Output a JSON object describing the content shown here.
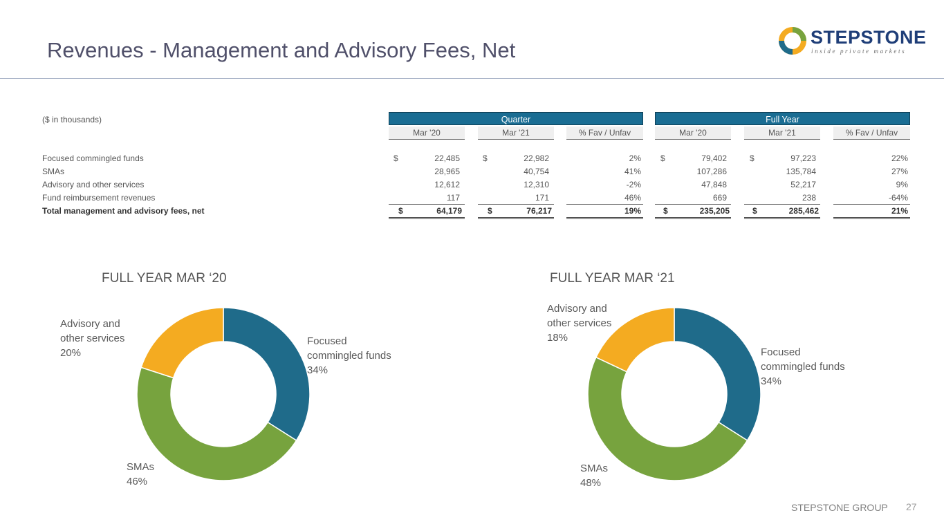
{
  "title": "Revenues - Management and Advisory Fees, Net",
  "logo": {
    "name": "STEPSTONE",
    "tagline": "inside private markets"
  },
  "table": {
    "units_label": "($ in thousands)",
    "groups": [
      "Quarter",
      "Full Year"
    ],
    "columns": [
      "Mar '20",
      "Mar '21",
      "% Fav / Unfav",
      "Mar '20",
      "Mar '21",
      "% Fav / Unfav"
    ],
    "currency": "$",
    "rows": [
      {
        "label": "Focused commingled funds",
        "values": [
          "22,485",
          "22,982",
          "2%",
          "79,402",
          "97,223",
          "22%"
        ]
      },
      {
        "label": "SMAs",
        "values": [
          "28,965",
          "40,754",
          "41%",
          "107,286",
          "135,784",
          "27%"
        ]
      },
      {
        "label": "Advisory and other services",
        "values": [
          "12,612",
          "12,310",
          "-2%",
          "47,848",
          "52,217",
          "9%"
        ]
      },
      {
        "label": "Fund reimbursement revenues",
        "values": [
          "117",
          "171",
          "46%",
          "669",
          "238",
          "-64%"
        ]
      },
      {
        "label": "Total management and advisory fees, net",
        "values": [
          "64,179",
          "76,217",
          "19%",
          "235,205",
          "285,462",
          "21%"
        ]
      }
    ]
  },
  "chart_data": [
    {
      "type": "pie",
      "title": "FULL YEAR MAR ‘20",
      "categories": [
        "Focused commingled funds",
        "SMAs",
        "Advisory and other services"
      ],
      "values": [
        34,
        46,
        20
      ],
      "labels": [
        {
          "name": "Focused commingled funds",
          "lines": [
            "Focused",
            "commingled funds"
          ],
          "pct": "34%"
        },
        {
          "name": "SMAs",
          "lines": [
            "SMAs"
          ],
          "pct": "46%"
        },
        {
          "name": "Advisory and other services",
          "lines": [
            "Advisory and",
            "other services"
          ],
          "pct": "20%"
        }
      ]
    },
    {
      "type": "pie",
      "title": "FULL YEAR MAR ‘21",
      "categories": [
        "Focused commingled funds",
        "SMAs",
        "Advisory and other services"
      ],
      "values": [
        34,
        48,
        18
      ],
      "labels": [
        {
          "name": "Focused commingled funds",
          "lines": [
            "Focused",
            "commingled funds"
          ],
          "pct": "34%"
        },
        {
          "name": "SMAs",
          "lines": [
            "SMAs"
          ],
          "pct": "48%"
        },
        {
          "name": "Advisory and other services",
          "lines": [
            "Advisory and",
            "other services"
          ],
          "pct": "18%"
        }
      ]
    }
  ],
  "colors": {
    "focused": "#1f6b8a",
    "smas": "#77a33e",
    "advisory": "#f4ab21",
    "header": "#1a6d93"
  },
  "footer": {
    "company": "STEPSTONE GROUP",
    "page": "27"
  }
}
